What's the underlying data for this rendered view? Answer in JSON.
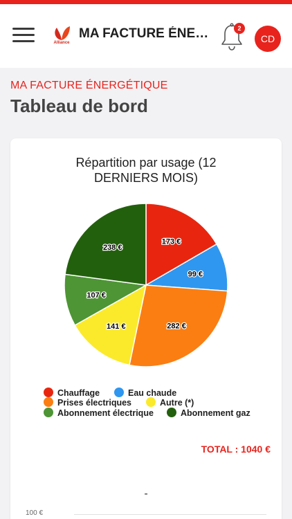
{
  "header": {
    "title": "MA FACTURE ÉNERG...",
    "logo_text": "Alliance",
    "notification_count": "2",
    "avatar_initials": "CD",
    "accent_color": "#e8231d"
  },
  "page": {
    "kicker": "MA FACTURE ÉNERGÉTIQUE",
    "title": "Tableau de bord"
  },
  "chart_data": {
    "type": "pie",
    "title_line1": "Répartition par usage (12",
    "title_line2": "DERNIERS MOIS)",
    "categories": [
      "Chauffage",
      "Eau chaude",
      "Prises électriques",
      "Autre (*)",
      "Abonnement électrique",
      "Abonnement gaz"
    ],
    "values": [
      173,
      99,
      282,
      141,
      107,
      238
    ],
    "labels": [
      "173 €",
      "99 €",
      "282 €",
      "141 €",
      "107 €",
      "238 €"
    ],
    "colors": [
      "#e8260f",
      "#2f97ef",
      "#fb7e12",
      "#fbea2b",
      "#4e9535",
      "#23600d"
    ],
    "legend_placement": "bottom",
    "total_label": "TOTAL : 1040 €"
  },
  "second_chart": {
    "title": "-",
    "y_tick": "100 €"
  }
}
